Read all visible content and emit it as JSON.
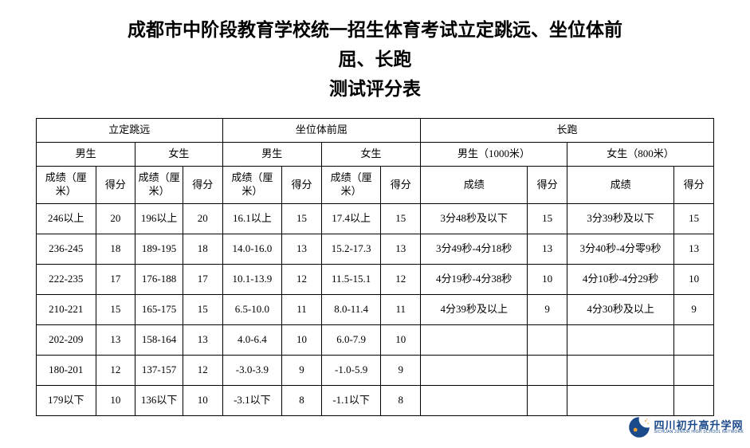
{
  "title": {
    "line1": "成都市中阶段教育学校统一招生体育考试立定跳远、坐位体前",
    "line2": "屈、长跑",
    "line3": "测试评分表"
  },
  "headers": {
    "event1": "立定跳远",
    "event2": "坐位体前屈",
    "event3": "长跑",
    "male": "男生",
    "female": "女生",
    "male_1000": "男生（1000米）",
    "female_800": "女生（800米）",
    "score_cm": "成绩（厘米）",
    "score": "成绩",
    "points": "得分"
  },
  "rows": [
    {
      "lj_m_s": "246以上",
      "lj_m_p": "20",
      "lj_f_s": "196以上",
      "lj_f_p": "20",
      "sr_m_s": "16.1以上",
      "sr_m_p": "15",
      "sr_f_s": "17.4以上",
      "sr_f_p": "15",
      "run_m_s": "3分48秒及以下",
      "run_m_p": "15",
      "run_f_s": "3分39秒及以下",
      "run_f_p": "15"
    },
    {
      "lj_m_s": "236-245",
      "lj_m_p": "18",
      "lj_f_s": "189-195",
      "lj_f_p": "18",
      "sr_m_s": "14.0-16.0",
      "sr_m_p": "13",
      "sr_f_s": "15.2-17.3",
      "sr_f_p": "13",
      "run_m_s": "3分49秒-4分18秒",
      "run_m_p": "13",
      "run_f_s": "3分40秒-4分零9秒",
      "run_f_p": "13"
    },
    {
      "lj_m_s": "222-235",
      "lj_m_p": "17",
      "lj_f_s": "176-188",
      "lj_f_p": "17",
      "sr_m_s": "10.1-13.9",
      "sr_m_p": "12",
      "sr_f_s": "11.5-15.1",
      "sr_f_p": "12",
      "run_m_s": "4分19秒-4分38秒",
      "run_m_p": "10",
      "run_f_s": "4分10秒-4分29秒",
      "run_f_p": "10"
    },
    {
      "lj_m_s": "210-221",
      "lj_m_p": "15",
      "lj_f_s": "165-175",
      "lj_f_p": "15",
      "sr_m_s": "6.5-10.0",
      "sr_m_p": "11",
      "sr_f_s": "8.0-11.4",
      "sr_f_p": "11",
      "run_m_s": "4分39秒及以上",
      "run_m_p": "9",
      "run_f_s": "4分30秒及以上",
      "run_f_p": "9"
    },
    {
      "lj_m_s": "202-209",
      "lj_m_p": "13",
      "lj_f_s": "158-164",
      "lj_f_p": "13",
      "sr_m_s": "4.0-6.4",
      "sr_m_p": "10",
      "sr_f_s": "6.0-7.9",
      "sr_f_p": "10",
      "run_m_s": "",
      "run_m_p": "",
      "run_f_s": "",
      "run_f_p": ""
    },
    {
      "lj_m_s": "180-201",
      "lj_m_p": "12",
      "lj_f_s": "137-157",
      "lj_f_p": "12",
      "sr_m_s": "-3.0-3.9",
      "sr_m_p": "9",
      "sr_f_s": "-1.0-5.9",
      "sr_f_p": "9",
      "run_m_s": "",
      "run_m_p": "",
      "run_f_s": "",
      "run_f_p": ""
    },
    {
      "lj_m_s": "179以下",
      "lj_m_p": "10",
      "lj_f_s": "136以下",
      "lj_f_p": "10",
      "sr_m_s": "-3.1以下",
      "sr_m_p": "8",
      "sr_f_s": "-1.1以下",
      "sr_f_p": "8",
      "run_m_s": "",
      "run_m_p": "",
      "run_f_s": "",
      "run_f_p": ""
    }
  ],
  "logo": {
    "cn": "四川初升高升学网",
    "en": "SICHUAN JUNIOR HIGH SCHOOL NETWORK",
    "moon_color": "#1a4a8a",
    "accent_color": "#f0a030"
  },
  "colors": {
    "border": "#000000",
    "text": "#000000",
    "bg": "#ffffff"
  }
}
